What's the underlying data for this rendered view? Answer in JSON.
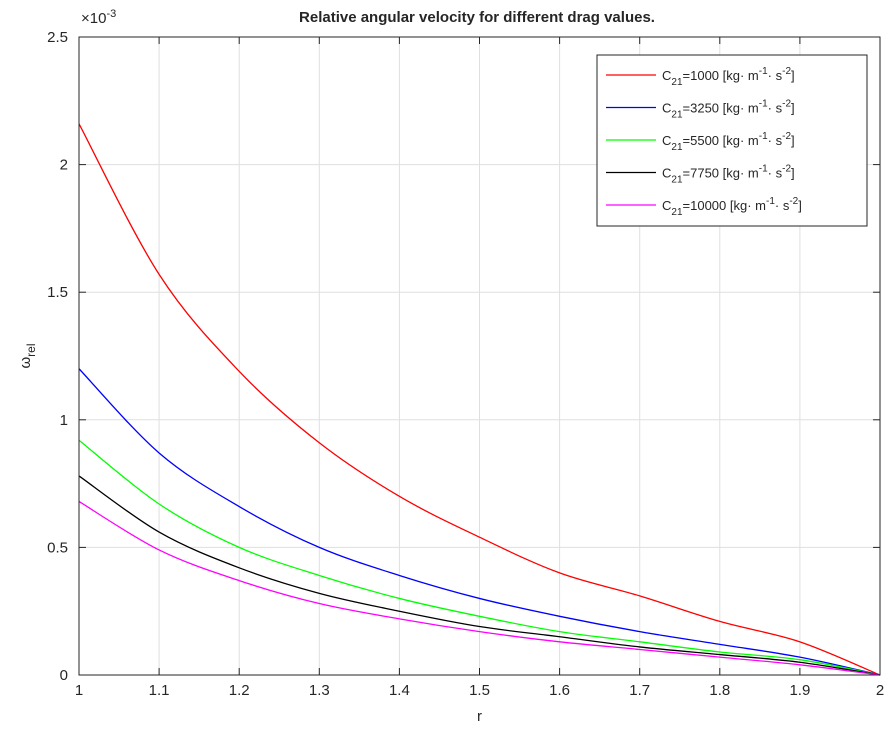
{
  "chart_data": {
    "type": "line",
    "title": "Relative angular velocity for different drag values.",
    "xlabel": "r",
    "ylabel": {
      "base": "ω",
      "sub": "rel"
    },
    "y_exponent": {
      "prefix": "×10",
      "exp": "-3"
    },
    "xlim": [
      1,
      2
    ],
    "ylim": [
      0,
      0.0025
    ],
    "grid": true,
    "legend_position": "top-right",
    "x_ticks": [
      1,
      1.1,
      1.2,
      1.3,
      1.4,
      1.5,
      1.6,
      1.7,
      1.8,
      1.9,
      2
    ],
    "x_tick_labels": [
      "1",
      "1.1",
      "1.2",
      "1.3",
      "1.4",
      "1.5",
      "1.6",
      "1.7",
      "1.8",
      "1.9",
      "2"
    ],
    "y_ticks": [
      0,
      0.0005,
      0.001,
      0.0015,
      0.002,
      0.0025
    ],
    "y_tick_labels": [
      "0",
      "0.5",
      "1",
      "1.5",
      "2",
      "2.5"
    ],
    "x": [
      1.0,
      1.1,
      1.2,
      1.3,
      1.4,
      1.5,
      1.6,
      1.7,
      1.8,
      1.9,
      2.0
    ],
    "series": [
      {
        "name": "C21=1000 [kg· m-1· s-2]",
        "legend": {
          "pre": "C",
          "sub": "21",
          "mid": "=1000 [kg· m",
          "sup1": "-1",
          "mid2": "· s",
          "sup2": "-2",
          "post": "]"
        },
        "color": "#ff0000",
        "values": [
          0.00216,
          0.00157,
          0.00119,
          0.00091,
          0.0007,
          0.00054,
          0.0004,
          0.00031,
          0.00021,
          0.00013,
          0.0
        ]
      },
      {
        "name": "C21=3250 [kg· m-1· s-2]",
        "legend": {
          "pre": "C",
          "sub": "21",
          "mid": "=3250 [kg· m",
          "sup1": "-1",
          "mid2": "· s",
          "sup2": "-2",
          "post": "]"
        },
        "color": "#0000ff",
        "values": [
          0.0012,
          0.00087,
          0.00066,
          0.0005,
          0.00039,
          0.0003,
          0.00023,
          0.00017,
          0.00012,
          7e-05,
          0.0
        ]
      },
      {
        "name": "C21=5500 [kg· m-1· s-2]",
        "legend": {
          "pre": "C",
          "sub": "21",
          "mid": "=5500 [kg· m",
          "sup1": "-1",
          "mid2": "· s",
          "sup2": "-2",
          "post": "]"
        },
        "color": "#00ff00",
        "values": [
          0.00092,
          0.00067,
          0.0005,
          0.00039,
          0.0003,
          0.00023,
          0.00017,
          0.00013,
          9e-05,
          6e-05,
          0.0
        ]
      },
      {
        "name": "C21=7750 [kg· m-1· s-2]",
        "legend": {
          "pre": "C",
          "sub": "21",
          "mid": "=7750 [kg· m",
          "sup1": "-1",
          "mid2": "· s",
          "sup2": "-2",
          "post": "]"
        },
        "color": "#000000",
        "values": [
          0.00078,
          0.00056,
          0.00042,
          0.00032,
          0.00025,
          0.00019,
          0.00015,
          0.00011,
          8e-05,
          5e-05,
          0.0
        ]
      },
      {
        "name": "C21=10000 [kg· m-1· s-2]",
        "legend": {
          "pre": "C",
          "sub": "21",
          "mid": "=10000 [kg· m",
          "sup1": "-1",
          "mid2": "· s",
          "sup2": "-2",
          "post": "]"
        },
        "color": "#ff00ff",
        "values": [
          0.00068,
          0.00049,
          0.00037,
          0.00028,
          0.00022,
          0.00017,
          0.00013,
          0.0001,
          7e-05,
          4e-05,
          0.0
        ]
      }
    ]
  }
}
